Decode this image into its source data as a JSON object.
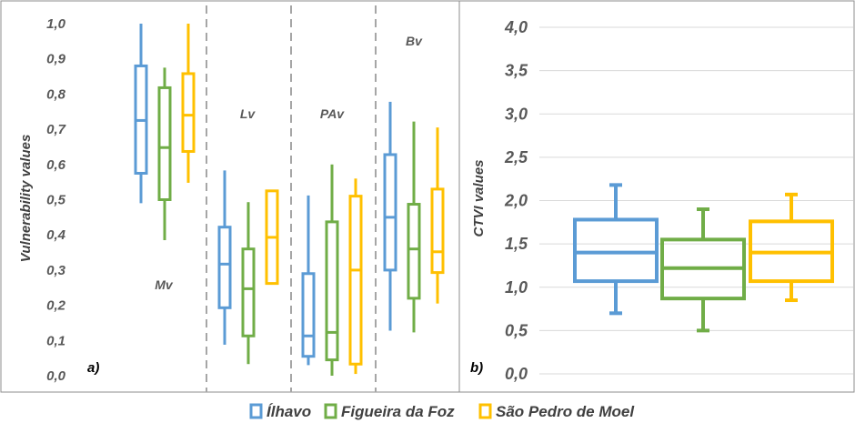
{
  "legend": [
    {
      "name": "Ílhavo",
      "color": "#5b9bd5"
    },
    {
      "name": "Figueira da Foz",
      "color": "#70ad47"
    },
    {
      "name": "São Pedro de Moel",
      "color": "#ffc000"
    }
  ],
  "chart_data": [
    {
      "type": "boxplot",
      "panel_label": "a)",
      "ylabel": "Vulnerability values",
      "ylim": [
        0,
        1
      ],
      "yticks": [
        "0,0",
        "0,1",
        "0,2",
        "0,3",
        "0,4",
        "0,5",
        "0,6",
        "0,7",
        "0,8",
        "0,9",
        "1,0"
      ],
      "grid": false,
      "groups": [
        {
          "label": "Mv",
          "boxes": [
            {
              "series": "Ílhavo",
              "min": 0.49,
              "q1": 0.575,
              "median": 0.725,
              "q3": 0.88,
              "max": 1.0
            },
            {
              "series": "Figueira da Foz",
              "min": 0.385,
              "q1": 0.5,
              "median": 0.648,
              "q3": 0.818,
              "max": 0.875
            },
            {
              "series": "São Pedro de Moel",
              "min": 0.548,
              "q1": 0.637,
              "median": 0.74,
              "q3": 0.858,
              "max": 1.0
            }
          ]
        },
        {
          "label": "Lv",
          "boxes": [
            {
              "series": "Ílhavo",
              "min": 0.088,
              "q1": 0.193,
              "median": 0.317,
              "q3": 0.422,
              "max": 0.583
            },
            {
              "series": "Figueira da Foz",
              "min": 0.033,
              "q1": 0.113,
              "median": 0.247,
              "q3": 0.36,
              "max": 0.493
            },
            {
              "series": "São Pedro de Moel",
              "min": 0.262,
              "q1": 0.262,
              "median": 0.393,
              "q3": 0.525,
              "max": 0.525
            }
          ]
        },
        {
          "label": "PAv",
          "boxes": [
            {
              "series": "Ílhavo",
              "min": 0.03,
              "q1": 0.055,
              "median": 0.113,
              "q3": 0.29,
              "max": 0.512
            },
            {
              "series": "Figueira da Foz",
              "min": 0.0,
              "q1": 0.045,
              "median": 0.123,
              "q3": 0.437,
              "max": 0.6
            },
            {
              "series": "São Pedro de Moel",
              "min": 0.005,
              "q1": 0.033,
              "median": 0.3,
              "q3": 0.51,
              "max": 0.56
            }
          ]
        },
        {
          "label": "Bv",
          "boxes": [
            {
              "series": "Ílhavo",
              "min": 0.128,
              "q1": 0.3,
              "median": 0.45,
              "q3": 0.628,
              "max": 0.778
            },
            {
              "series": "Figueira da Foz",
              "min": 0.123,
              "q1": 0.22,
              "median": 0.36,
              "q3": 0.487,
              "max": 0.722
            },
            {
              "series": "São Pedro de Moel",
              "min": 0.205,
              "q1": 0.293,
              "median": 0.352,
              "q3": 0.53,
              "max": 0.705
            }
          ]
        }
      ]
    },
    {
      "type": "boxplot",
      "panel_label": "b)",
      "ylabel": "CTVI values",
      "ylim": [
        0,
        4
      ],
      "yticks": [
        "0,0",
        "0,5",
        "1,0",
        "1,5",
        "2,0",
        "2,5",
        "3,0",
        "3,5",
        "4,0"
      ],
      "grid": true,
      "boxes": [
        {
          "series": "Ílhavo",
          "min": 0.7,
          "q1": 1.07,
          "median": 1.4,
          "q3": 1.78,
          "max": 2.18
        },
        {
          "series": "Figueira da Foz",
          "min": 0.5,
          "q1": 0.87,
          "median": 1.22,
          "q3": 1.55,
          "max": 1.9
        },
        {
          "series": "São Pedro de Moel",
          "min": 0.85,
          "q1": 1.07,
          "median": 1.4,
          "q3": 1.76,
          "max": 2.07
        }
      ]
    }
  ]
}
